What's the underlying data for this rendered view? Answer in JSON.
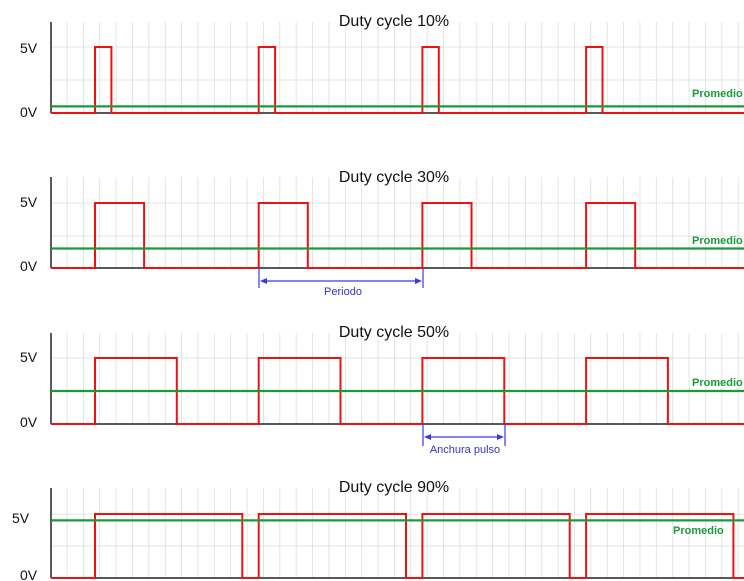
{
  "colors": {
    "signal": "#ee1111",
    "average": "#1a9a3a",
    "annotation": "#3a3ae6",
    "axis": "#222222",
    "grid": "#dddddd"
  },
  "legend_label": "Promedio",
  "panels": [
    {
      "title": "Duty cycle 10%",
      "duty": 0.1,
      "label_high": "5V",
      "label_low": "0V"
    },
    {
      "title": "Duty cycle 30%",
      "duty": 0.3,
      "label_high": "5V",
      "label_low": "0V"
    },
    {
      "title": "Duty cycle 50%",
      "duty": 0.5,
      "label_high": "5V",
      "label_low": "0V"
    },
    {
      "title": "Duty cycle 90%",
      "duty": 0.9,
      "label_high": "5V",
      "label_low": "0V"
    }
  ],
  "annotations": {
    "period_label": "Periodo",
    "pulse_width_label": "Anchura pulso"
  }
}
